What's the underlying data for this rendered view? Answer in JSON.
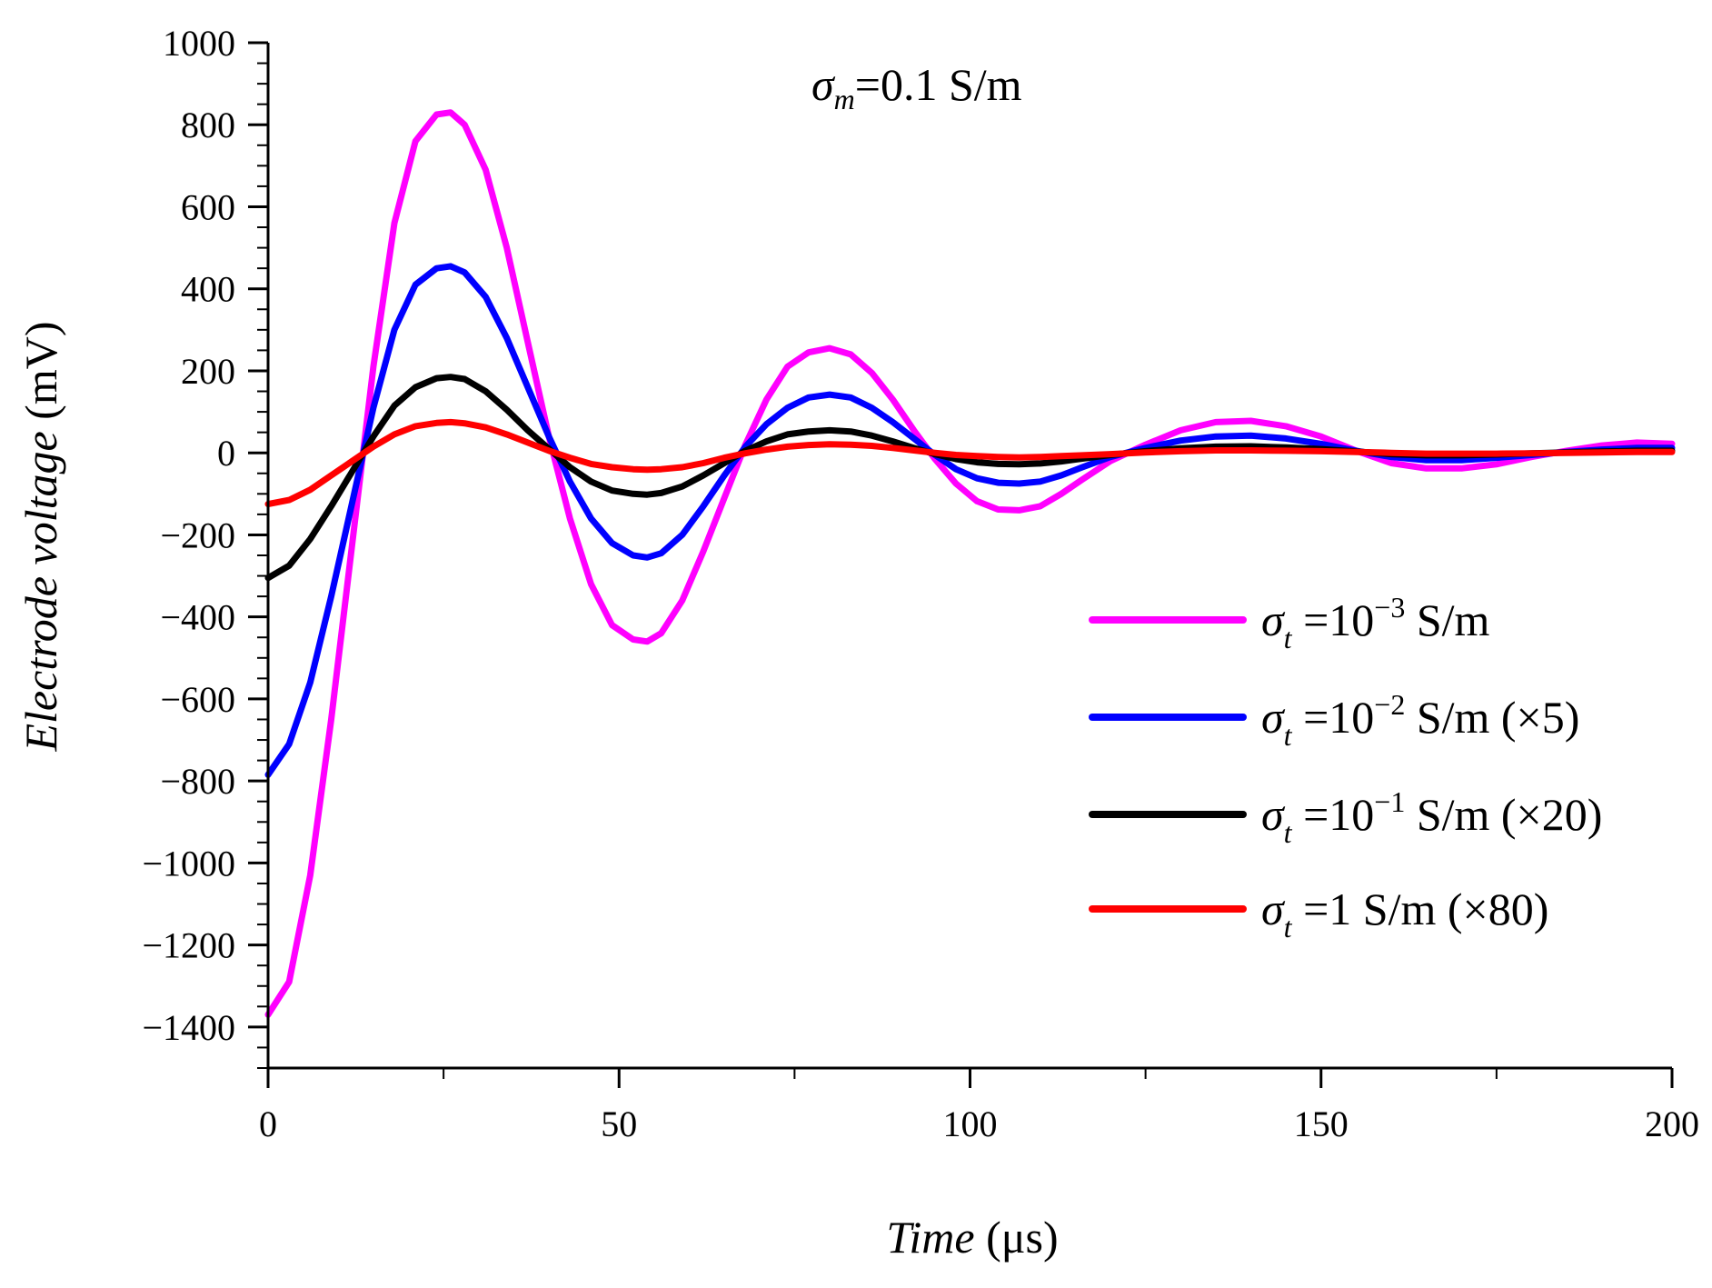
{
  "chart_data": {
    "type": "line",
    "title": "",
    "annotation": {
      "symbol": "σ",
      "sub": "m",
      "text": "=0.1 S/m"
    },
    "xlabel": {
      "italic": "Time",
      "plain": " (μs)"
    },
    "ylabel": {
      "italic": "Electrode voltage",
      "plain": " (mV)"
    },
    "xlim": [
      0,
      200
    ],
    "ylim": [
      -1500,
      1000
    ],
    "x_ticks": [
      0,
      50,
      100,
      150,
      200
    ],
    "x_tick_labels": [
      "0",
      "50",
      "100",
      "150",
      "200"
    ],
    "y_ticks": [
      -1400,
      -1200,
      -1000,
      -800,
      -600,
      -400,
      -200,
      0,
      200,
      400,
      600,
      800,
      1000
    ],
    "y_tick_labels": [
      "−1400",
      "−1200",
      "−1000",
      "−800",
      "−600",
      "−400",
      "−200",
      "0",
      "200",
      "400",
      "600",
      "800",
      "1000"
    ],
    "grid": false,
    "legend_position": "center-right",
    "series": [
      {
        "name": "σt =10−3 S/m",
        "legend": {
          "symbol": "σ",
          "sub": "t",
          "pre": " =10",
          "sup": "−3",
          "post": " S/m"
        },
        "color": "#ff00ff",
        "x": [
          0,
          3,
          6,
          9,
          12,
          15,
          18,
          21,
          24,
          26,
          28,
          31,
          34,
          37,
          40,
          43,
          46,
          49,
          52,
          54,
          56,
          59,
          62,
          65,
          68,
          71,
          74,
          77,
          80,
          83,
          86,
          89,
          92,
          95,
          98,
          101,
          104,
          107,
          110,
          113,
          116,
          120,
          125,
          130,
          135,
          140,
          145,
          150,
          155,
          160,
          165,
          170,
          175,
          180,
          185,
          190,
          195,
          200
        ],
        "y": [
          -1370,
          -1290,
          -1030,
          -650,
          -220,
          210,
          560,
          760,
          825,
          830,
          800,
          690,
          500,
          270,
          40,
          -160,
          -320,
          -420,
          -455,
          -460,
          -440,
          -360,
          -240,
          -110,
          20,
          130,
          210,
          245,
          255,
          240,
          195,
          130,
          55,
          -15,
          -75,
          -118,
          -138,
          -140,
          -130,
          -100,
          -65,
          -20,
          20,
          55,
          75,
          78,
          65,
          40,
          5,
          -25,
          -38,
          -38,
          -28,
          -10,
          5,
          18,
          25,
          22
        ]
      },
      {
        "name": "σt =10−2 S/m (×5)",
        "legend": {
          "symbol": "σ",
          "sub": "t",
          "pre": " =10",
          "sup": "−2",
          "post": " S/m (×5)"
        },
        "color": "#0000ff",
        "x": [
          0,
          3,
          6,
          9,
          12,
          15,
          18,
          21,
          24,
          26,
          28,
          31,
          34,
          37,
          40,
          43,
          46,
          49,
          52,
          54,
          56,
          59,
          62,
          65,
          68,
          71,
          74,
          77,
          80,
          83,
          86,
          89,
          92,
          95,
          98,
          101,
          104,
          107,
          110,
          113,
          116,
          120,
          125,
          130,
          135,
          140,
          145,
          150,
          155,
          160,
          165,
          170,
          175,
          180,
          185,
          190,
          195,
          200
        ],
        "y": [
          -785,
          -710,
          -560,
          -350,
          -120,
          110,
          300,
          410,
          450,
          455,
          440,
          380,
          280,
          160,
          40,
          -70,
          -160,
          -220,
          -250,
          -255,
          -245,
          -200,
          -130,
          -55,
          15,
          70,
          110,
          135,
          142,
          135,
          110,
          75,
          35,
          -5,
          -40,
          -62,
          -73,
          -75,
          -70,
          -55,
          -35,
          -10,
          12,
          30,
          40,
          42,
          35,
          22,
          5,
          -10,
          -18,
          -18,
          -12,
          -5,
          2,
          8,
          12,
          12
        ]
      },
      {
        "name": "σt =10−1 S/m (×20)",
        "legend": {
          "symbol": "σ",
          "sub": "t",
          "pre": " =10",
          "sup": "−1",
          "post": " S/m (×20)"
        },
        "color": "#000000",
        "x": [
          0,
          3,
          6,
          9,
          12,
          15,
          18,
          21,
          24,
          26,
          28,
          31,
          34,
          37,
          40,
          43,
          46,
          49,
          52,
          54,
          56,
          59,
          62,
          65,
          68,
          71,
          74,
          77,
          80,
          83,
          86,
          89,
          92,
          95,
          98,
          101,
          104,
          107,
          110,
          113,
          116,
          120,
          125,
          130,
          135,
          140,
          145,
          150,
          155,
          160,
          165,
          170,
          175,
          180,
          185,
          190,
          195,
          200
        ],
        "y": [
          -305,
          -275,
          -210,
          -130,
          -45,
          40,
          115,
          160,
          182,
          185,
          180,
          150,
          105,
          55,
          10,
          -35,
          -70,
          -92,
          -100,
          -102,
          -98,
          -82,
          -55,
          -25,
          5,
          28,
          45,
          52,
          55,
          52,
          42,
          28,
          12,
          -3,
          -15,
          -23,
          -27,
          -28,
          -26,
          -21,
          -14,
          -5,
          4,
          11,
          15,
          16,
          13,
          9,
          3,
          -3,
          -6,
          -6,
          -4,
          -1,
          1,
          3,
          5,
          5
        ]
      },
      {
        "name": "σt =1 S/m (×80)",
        "legend": {
          "symbol": "σ",
          "sub": "t",
          "pre": " =1 S/m (×80)",
          "sup": "",
          "post": ""
        },
        "color": "#ff0000",
        "x": [
          0,
          3,
          6,
          9,
          12,
          15,
          18,
          21,
          24,
          26,
          28,
          31,
          34,
          37,
          40,
          43,
          46,
          49,
          52,
          54,
          56,
          59,
          62,
          65,
          68,
          71,
          74,
          77,
          80,
          83,
          86,
          89,
          92,
          95,
          98,
          101,
          104,
          107,
          110,
          113,
          116,
          120,
          125,
          130,
          135,
          140,
          145,
          150,
          155,
          160,
          165,
          170,
          175,
          180,
          185,
          190,
          195,
          200
        ],
        "y": [
          -125,
          -115,
          -90,
          -55,
          -20,
          15,
          45,
          65,
          73,
          75,
          72,
          62,
          45,
          25,
          5,
          -12,
          -27,
          -35,
          -40,
          -41,
          -40,
          -35,
          -25,
          -12,
          -1,
          8,
          15,
          19,
          21,
          20,
          17,
          12,
          6,
          0,
          -5,
          -8,
          -10,
          -11,
          -10,
          -8,
          -6,
          -3,
          1,
          4,
          6,
          6,
          5,
          4,
          2,
          0,
          -2,
          -2,
          -2,
          -1,
          0,
          1,
          2,
          2
        ]
      }
    ]
  }
}
